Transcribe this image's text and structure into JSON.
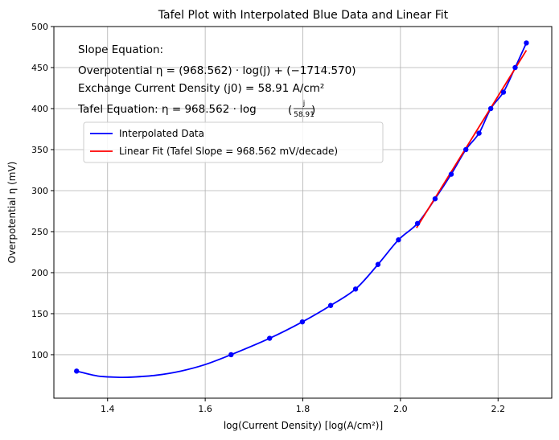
{
  "chart_data": {
    "type": "line",
    "title": "Tafel Plot with Interpolated Blue Data and Linear Fit",
    "xlabel": "log(Current Density) [log(A/cm²)]",
    "ylabel": "Overpotential η (mV)",
    "xlim": [
      1.29,
      2.31
    ],
    "ylim": [
      47,
      500
    ],
    "x_ticks": [
      1.4,
      1.6,
      1.8,
      2.0,
      2.2
    ],
    "x_tick_labels": [
      "1.4",
      "1.6",
      "1.8",
      "2.0",
      "2.2"
    ],
    "y_ticks": [
      100,
      150,
      200,
      250,
      300,
      350,
      400,
      450,
      500
    ],
    "y_tick_labels": [
      "100",
      "150",
      "200",
      "250",
      "300",
      "350",
      "400",
      "450",
      "500"
    ],
    "grid": true,
    "legend_placement": "upper-left",
    "series": [
      {
        "name": "Interpolated Data",
        "kind": "line",
        "color": "#0000ff",
        "x": [
          1.3365,
          1.38,
          1.42,
          1.45,
          1.5,
          1.55,
          1.6,
          1.653,
          1.732,
          1.799,
          1.857,
          1.908,
          1.954,
          1.996,
          2.035,
          2.071,
          2.104,
          2.134,
          2.161,
          2.185,
          2.211,
          2.235,
          2.258
        ],
        "y": [
          80,
          74,
          72.5,
          72.7,
          75,
          80,
          88,
          100,
          120,
          140,
          160,
          180,
          210,
          240,
          260,
          290,
          320,
          350,
          370,
          400,
          420,
          450,
          480
        ]
      },
      {
        "name": "Linear Fit (Tafel Slope = 968.562 mV/decade)",
        "kind": "line",
        "color": "#ff0000",
        "x": [
          2.033,
          2.258
        ],
        "y": [
          254.6,
          471.0
        ]
      },
      {
        "name": "data-points",
        "kind": "scatter",
        "color": "#0000ff",
        "x": [
          1.3365,
          1.653,
          1.732,
          1.799,
          1.857,
          1.908,
          1.954,
          1.996,
          2.035,
          2.071,
          2.104,
          2.134,
          2.161,
          2.185,
          2.211,
          2.235,
          2.258
        ],
        "y": [
          80,
          100,
          120,
          140,
          160,
          180,
          210,
          240,
          260,
          290,
          320,
          350,
          370,
          400,
          420,
          450,
          480
        ]
      }
    ],
    "annotations": {
      "slope_heading": "Slope Equation:",
      "overpotential_eq": "Overpotential η = (968.562) · log(j) + (−1714.570)",
      "exchange_current": "Exchange Current Density (j0) = 58.91 A/cm²",
      "tafel_eq_prefix": "Tafel Equation: η = 968.562 · log",
      "tafel_frac_num": "j",
      "tafel_frac_den": "58.91"
    }
  }
}
